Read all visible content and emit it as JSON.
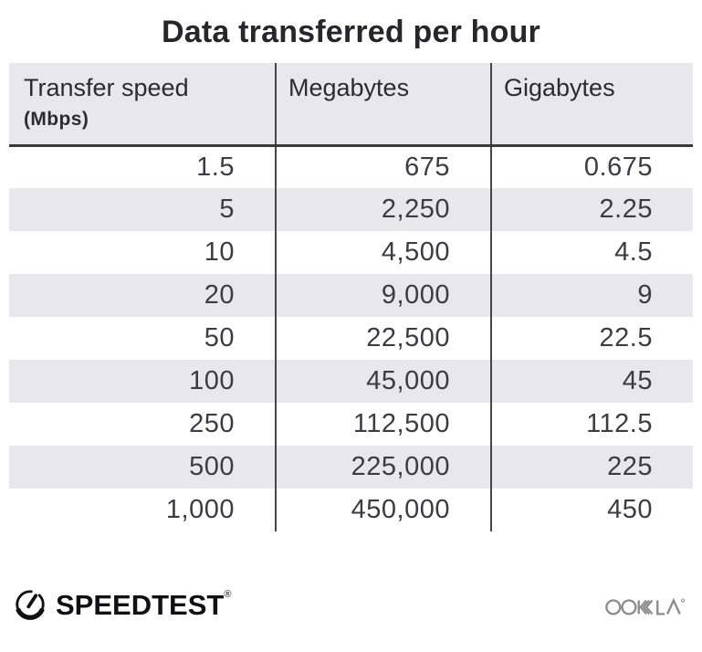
{
  "title": "Data transferred per hour",
  "table": {
    "columns": [
      "Transfer speed",
      "Megabytes",
      "Gigabytes"
    ],
    "col1_sub": "(Mbps)",
    "rows": [
      [
        "1.5",
        "675",
        "0.675"
      ],
      [
        "5",
        "2,250",
        "2.25"
      ],
      [
        "10",
        "4,500",
        "4.5"
      ],
      [
        "20",
        "9,000",
        "9"
      ],
      [
        "50",
        "22,500",
        "22.5"
      ],
      [
        "100",
        "45,000",
        "45"
      ],
      [
        "250",
        "112,500",
        "112.5"
      ],
      [
        "500",
        "225,000",
        "225"
      ],
      [
        "1,000",
        "450,000",
        "450"
      ]
    ]
  },
  "chart_data": {
    "type": "table",
    "title": "Data transferred per hour",
    "columns": [
      "Transfer speed (Mbps)",
      "Megabytes",
      "Gigabytes"
    ],
    "rows": [
      [
        1.5,
        675,
        0.675
      ],
      [
        5,
        2250,
        2.25
      ],
      [
        10,
        4500,
        4.5
      ],
      [
        20,
        9000,
        9
      ],
      [
        50,
        22500,
        22.5
      ],
      [
        100,
        45000,
        45
      ],
      [
        250,
        112500,
        112.5
      ],
      [
        500,
        225000,
        225
      ],
      [
        1000,
        450000,
        450
      ]
    ]
  },
  "footer": {
    "speedtest_label": "SPEEDTEST",
    "speedtest_reg": "®",
    "ookla_label": "OOKLA"
  },
  "colors": {
    "stripe": "#e8e8ec",
    "divider": "#47474b",
    "header_rule": "#3a3a3d",
    "number_text": "#3c3c42",
    "title_text": "#26262b",
    "speedtest_black": "#111114",
    "ookla_gray": "#8b8b8b"
  }
}
